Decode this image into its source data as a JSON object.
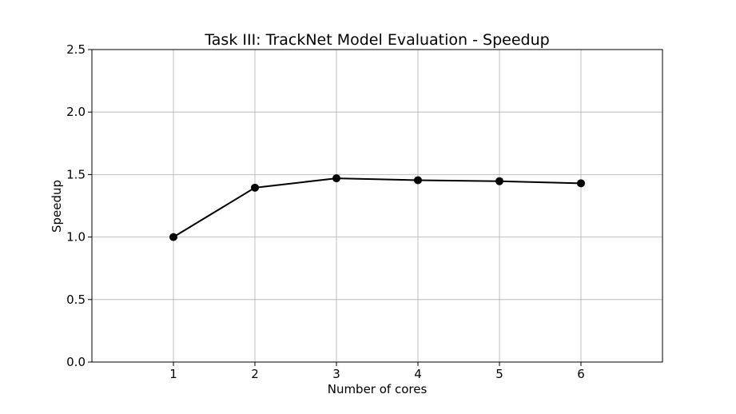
{
  "chart_data": {
    "type": "line",
    "title": "Task III: TrackNet Model Evaluation - Speedup",
    "xlabel": "Number of cores",
    "ylabel": "Speedup",
    "x": [
      1,
      2,
      3,
      4,
      5,
      6
    ],
    "y": [
      1.0,
      1.395,
      1.47,
      1.455,
      1.447,
      1.43
    ],
    "xlim": [
      0,
      7
    ],
    "ylim": [
      0.0,
      2.5
    ],
    "xticks": [
      "1",
      "2",
      "3",
      "4",
      "5",
      "6"
    ],
    "yticks": [
      "0.0",
      "0.5",
      "1.0",
      "1.5",
      "2.0",
      "2.5"
    ],
    "grid": true,
    "line_color": "#000000",
    "marker": "circle"
  }
}
